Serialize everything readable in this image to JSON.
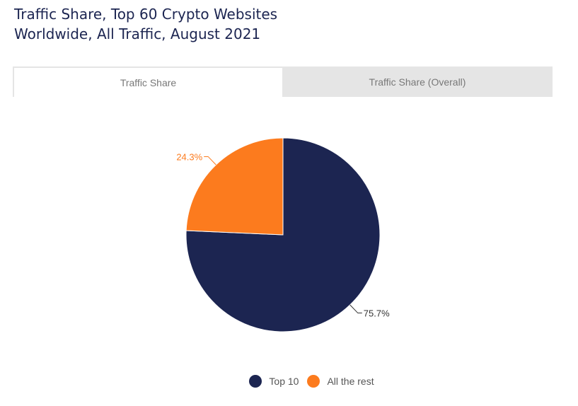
{
  "title": {
    "line1": "Traffic Share, Top 60 Crypto Websites",
    "line2": "Worldwide, All Traffic, August 2021"
  },
  "tabs": [
    {
      "label": "Traffic Share",
      "active": true
    },
    {
      "label": "Traffic Share (Overall)",
      "active": false
    }
  ],
  "chart_data": {
    "type": "pie",
    "title": "Traffic Share, Top 60 Crypto Websites Worldwide, All Traffic, August 2021",
    "slices": [
      {
        "name": "Top 10",
        "value": 75.7,
        "label": "75.7%",
        "color": "#1c2551"
      },
      {
        "name": "All the rest",
        "value": 24.3,
        "label": "24.3%",
        "color": "#fc7b1e"
      }
    ],
    "legend_position": "bottom-center"
  },
  "colors": {
    "title_text": "#1c2551",
    "tab_bar": "#e5e5e5",
    "tab_text": "#787878"
  }
}
